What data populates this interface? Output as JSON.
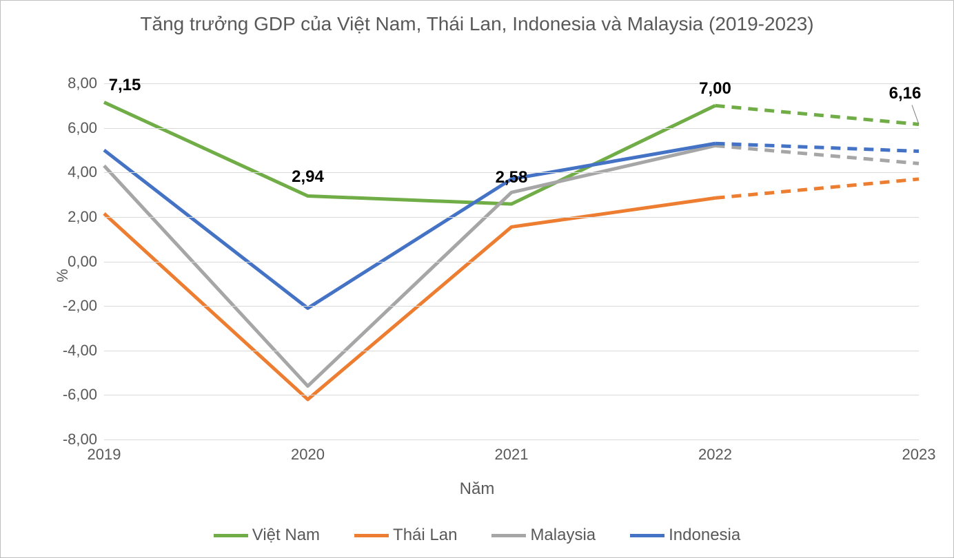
{
  "chart": {
    "type": "line",
    "title": "Tăng trưởng GDP của Việt Nam, Thái Lan, Indonesia và Malaysia (2019-2023)",
    "title_fontsize": 28,
    "title_color": "#595959",
    "xlabel": "Năm",
    "ylabel": "%",
    "label_fontsize": 24,
    "label_color": "#595959",
    "categories": [
      "2019",
      "2020",
      "2021",
      "2022",
      "2023"
    ],
    "ylim": [
      -8,
      8
    ],
    "ytick_step": 2,
    "yticks": [
      "-8,00",
      "-6,00",
      "-4,00",
      "-2,00",
      "0,00",
      "2,00",
      "4,00",
      "6,00",
      "8,00"
    ],
    "grid_color": "#d9d9d9",
    "background_color": "#ffffff",
    "border_color": "#bfbfbf",
    "tick_fontsize": 22,
    "line_width": 5,
    "series": [
      {
        "name": "Việt Nam",
        "color": "#70ad47",
        "values": [
          7.15,
          2.94,
          2.58,
          7.0,
          6.16
        ],
        "forecast_from_index": 4,
        "dash_pattern": "14 10",
        "data_labels": [
          {
            "i": 0,
            "text": "7,15",
            "dx": 30,
            "dy": -10
          },
          {
            "i": 1,
            "text": "2,94",
            "dx": 0,
            "dy": -14
          },
          {
            "i": 2,
            "text": "2,58",
            "dx": 0,
            "dy": -24
          },
          {
            "i": 3,
            "text": "7,00",
            "dx": 0,
            "dy": -10
          },
          {
            "i": 4,
            "text": "6,16",
            "dx": -20,
            "dy": -30,
            "leader": true
          }
        ]
      },
      {
        "name": "Thái Lan",
        "color": "#ed7d31",
        "values": [
          2.15,
          -6.2,
          1.55,
          2.85,
          3.7
        ],
        "forecast_from_index": 4,
        "dash_pattern": "14 10",
        "data_labels": []
      },
      {
        "name": "Malaysia",
        "color": "#a6a6a6",
        "values": [
          4.3,
          -5.6,
          3.1,
          5.2,
          4.4
        ],
        "forecast_from_index": 4,
        "dash_pattern": "14 10",
        "data_labels": []
      },
      {
        "name": "Indonesia",
        "color": "#4472c4",
        "values": [
          5.0,
          -2.1,
          3.7,
          5.3,
          4.95
        ],
        "forecast_from_index": 4,
        "dash_pattern": "14 10",
        "data_labels": []
      }
    ],
    "legend": {
      "position": "bottom",
      "fontsize": 24,
      "swatch_width": 50,
      "swatch_height": 5,
      "gap": 50
    }
  }
}
